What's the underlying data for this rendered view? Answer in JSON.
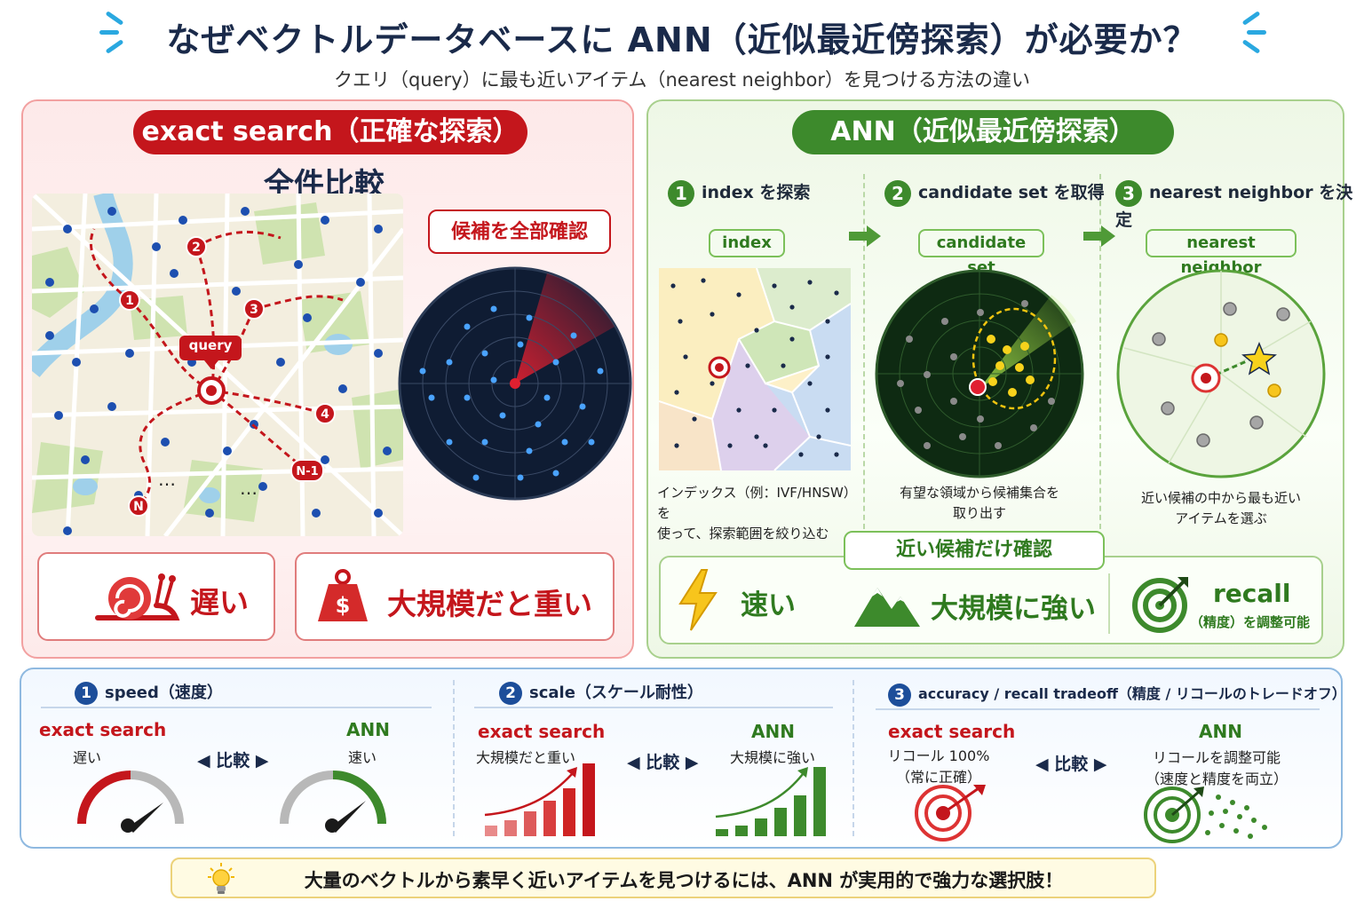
{
  "title": "なぜベクトルデータベースに ANN（近似最近傍探索）が必要か？",
  "subtitle": "クエリ（query）に最も近いアイテム（nearest neighbor）を見つける方法の違い",
  "exact": {
    "header": "exact search（正確な探索）",
    "heading": "全件比較",
    "check_all": "候補を全部確認",
    "query_label": "query",
    "route_markers": [
      "1",
      "2",
      "3",
      "4",
      "N-1",
      "N"
    ],
    "ellipsis": "…",
    "drawbacks": [
      {
        "icon": "snail-icon",
        "label": "遅い"
      },
      {
        "icon": "money-weight-icon",
        "label": "大規模だと重い"
      }
    ]
  },
  "ann": {
    "header": "ANN（近似最近傍探索）",
    "steps": [
      {
        "num": "1",
        "label": "index を探索",
        "tag": "index",
        "caption": [
          "インデックス（例：IVF/HNSW）を",
          "使って、探索範囲を絞り込む"
        ]
      },
      {
        "num": "2",
        "label": "candidate set を取得",
        "tag": "candidate set",
        "caption": [
          "有望な領域から候補集合を",
          "取り出す"
        ]
      },
      {
        "num": "3",
        "label": "nearest neighbor を決定",
        "tag": "nearest neighbor",
        "caption": [
          "近い候補の中から最も近い",
          "アイテムを選ぶ"
        ]
      }
    ],
    "check_near": "近い候補だけ確認",
    "benefits": [
      {
        "icon": "lightning-icon",
        "label": "速い"
      },
      {
        "icon": "mountain-icon",
        "label": "大規模に強い"
      },
      {
        "icon": "target-icon",
        "label": "recall",
        "sub": "（精度）を調整可能"
      }
    ]
  },
  "compare": {
    "hikaku": "比較",
    "sections": [
      {
        "num": "1",
        "title": "speed（速度）",
        "left_name": "exact search",
        "left_sub": [
          "遅い"
        ],
        "right_name": "ANN",
        "right_sub": [
          "速い"
        ]
      },
      {
        "num": "2",
        "title": "scale（スケール耐性）",
        "left_name": "exact search",
        "left_sub": [
          "大規模だと重い"
        ],
        "right_name": "ANN",
        "right_sub": [
          "大規模に強い"
        ]
      },
      {
        "num": "3",
        "title": "accuracy / recall tradeoff（精度 / リコールのトレードオフ）",
        "left_name": "exact search",
        "left_sub": [
          "リコール 100%",
          "（常に正確）"
        ],
        "right_name": "ANN",
        "right_sub": [
          "リコールを調整可能",
          "（速度と精度を両立）"
        ]
      }
    ]
  },
  "footer": "大量のベクトルから素早く近いアイテムを見つけるには、ANN が実用的で強力な選択肢！",
  "colors": {
    "red": "#c4161c",
    "green": "#3d8a2c",
    "navy": "#1a2a4a",
    "blue_dot": "#1d4fb0"
  }
}
